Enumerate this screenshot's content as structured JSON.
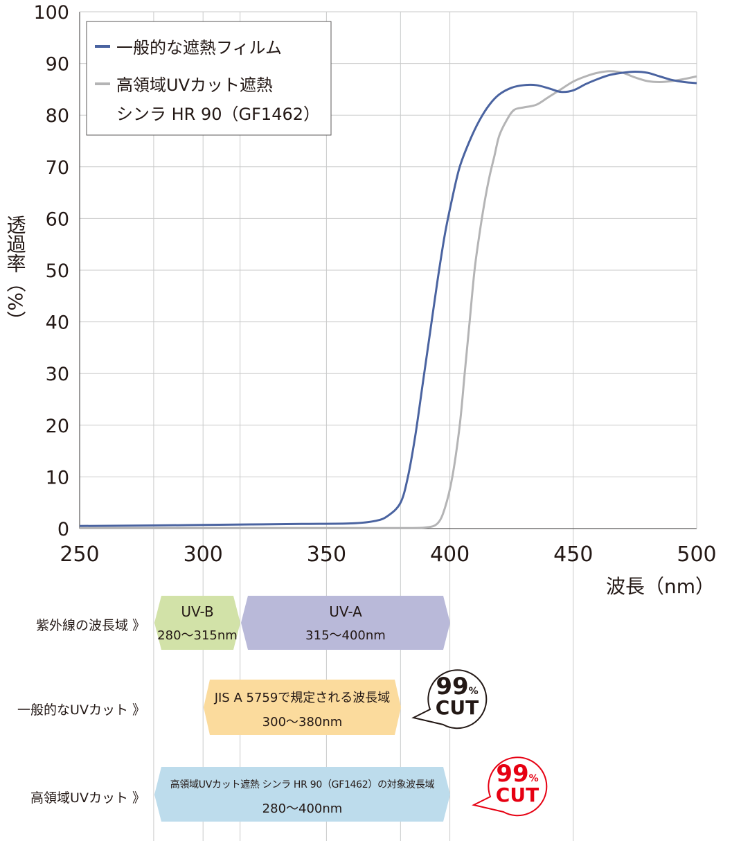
{
  "chart_data": {
    "type": "line",
    "ylabel": "透過率（%）",
    "xlabel": "波長（nm）",
    "xlim": [
      250,
      500
    ],
    "ylim": [
      0,
      100
    ],
    "x_ticks": [
      "250",
      "300",
      "350",
      "400",
      "450",
      "500"
    ],
    "y_ticks": [
      "0",
      "10",
      "20",
      "30",
      "40",
      "50",
      "60",
      "70",
      "80",
      "90",
      "100"
    ],
    "grid": true,
    "legend": {
      "position": "top-left"
    },
    "series": [
      {
        "name": "一般的な遮熱フィルム",
        "color": "#4a63a0",
        "points": [
          [
            250,
            0.5
          ],
          [
            280,
            0.6
          ],
          [
            300,
            0.7
          ],
          [
            320,
            0.8
          ],
          [
            340,
            0.9
          ],
          [
            360,
            1.0
          ],
          [
            370,
            1.5
          ],
          [
            375,
            2.5
          ],
          [
            380,
            5
          ],
          [
            383,
            10
          ],
          [
            386,
            18
          ],
          [
            389,
            28
          ],
          [
            392,
            38
          ],
          [
            395,
            48
          ],
          [
            398,
            57
          ],
          [
            401,
            64
          ],
          [
            404,
            70
          ],
          [
            408,
            75
          ],
          [
            412,
            79
          ],
          [
            416,
            82
          ],
          [
            420,
            84
          ],
          [
            425,
            85.3
          ],
          [
            430,
            85.8
          ],
          [
            435,
            85.8
          ],
          [
            440,
            85.2
          ],
          [
            445,
            84.5
          ],
          [
            450,
            84.8
          ],
          [
            455,
            86
          ],
          [
            460,
            87
          ],
          [
            465,
            87.8
          ],
          [
            470,
            88.2
          ],
          [
            475,
            88.4
          ],
          [
            480,
            88.2
          ],
          [
            485,
            87.5
          ],
          [
            490,
            86.8
          ],
          [
            495,
            86.4
          ],
          [
            500,
            86.2
          ]
        ]
      },
      {
        "name": "高領域UVカット遮熱 シンラ HR 90（GF1462）",
        "color": "#b4b4b5",
        "points": [
          [
            250,
            0.1
          ],
          [
            300,
            0.1
          ],
          [
            350,
            0.1
          ],
          [
            380,
            0.1
          ],
          [
            390,
            0.2
          ],
          [
            395,
            1
          ],
          [
            398,
            4
          ],
          [
            401,
            10
          ],
          [
            404,
            20
          ],
          [
            406,
            30
          ],
          [
            408,
            40
          ],
          [
            410,
            50
          ],
          [
            412,
            57
          ],
          [
            414,
            63
          ],
          [
            416,
            68
          ],
          [
            418,
            72
          ],
          [
            420,
            76
          ],
          [
            423,
            79
          ],
          [
            426,
            81
          ],
          [
            430,
            81.5
          ],
          [
            435,
            82
          ],
          [
            440,
            83.5
          ],
          [
            445,
            85
          ],
          [
            450,
            86.5
          ],
          [
            455,
            87.5
          ],
          [
            460,
            88.2
          ],
          [
            465,
            88.5
          ],
          [
            470,
            88.2
          ],
          [
            475,
            87.3
          ],
          [
            480,
            86.6
          ],
          [
            485,
            86.4
          ],
          [
            490,
            86.6
          ],
          [
            495,
            87
          ],
          [
            500,
            87.5
          ]
        ]
      }
    ]
  },
  "legend": {
    "items": [
      "一般的な遮熱フィルム",
      "高領域UVカット遮熱"
    ],
    "item2_line2": "シンラ HR 90（GF1462）"
  },
  "rows": {
    "uv_range_label": "紫外線の波長域 》",
    "general_label": "一般的なUVカット 》",
    "high_label": "高領域UVカット 》"
  },
  "bands": {
    "uvb_title": "UV-B",
    "uvb_range": "280～315nm",
    "uva_title": "UV-A",
    "uva_range": "315～400nm",
    "jis_title": "JIS A 5759で規定される波長域",
    "jis_range": "300～380nm",
    "high_title": "高領域UVカット遮熱 シンラ HR 90（GF1462）の対象波長域",
    "high_range": "280～400nm"
  },
  "badges": {
    "general_value": "99",
    "general_unit": "%",
    "general_text": "CUT",
    "high_value": "99",
    "high_unit": "%",
    "high_text": "CUT"
  },
  "colors": {
    "uvb": "#d2e2a8",
    "uva": "#b9b9d9",
    "jis": "#fbdb9d",
    "high": "#bddcec",
    "badge_red": "#e60012",
    "badge_dark": "#231815"
  }
}
